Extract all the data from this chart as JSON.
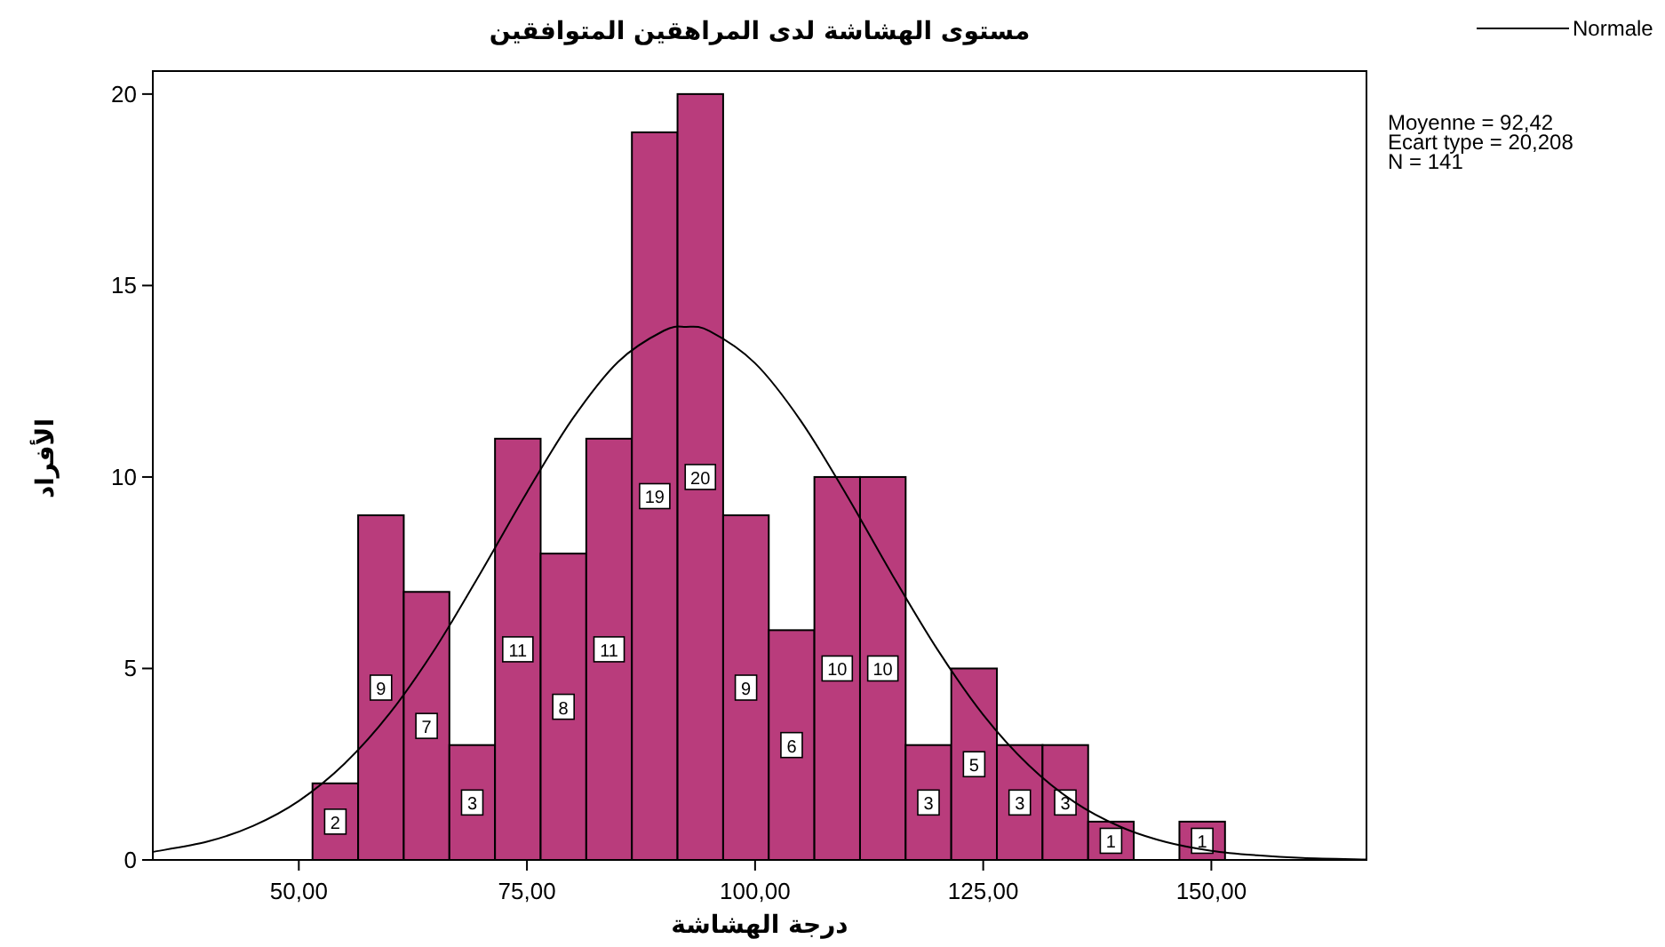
{
  "chart_data": {
    "type": "histogram",
    "title": "مستوى الهشاشة لدى المراهقين المتوافقين",
    "xlabel": "درجة الهشاشة",
    "ylabel": "الأفراد",
    "bins": [
      51.5,
      56.5,
      61.5,
      66.5,
      71.5,
      76.5,
      81.5,
      86.5,
      91.5,
      96.5,
      101.5,
      106.5,
      111.5,
      116.5,
      121.5,
      126.5,
      131.5,
      136.5,
      141.5,
      146.5,
      151.5
    ],
    "series": [
      {
        "type": "histogram",
        "color": "#b93c7c",
        "values": [
          2,
          9,
          7,
          3,
          11,
          8,
          11,
          19,
          20,
          9,
          6,
          10,
          10,
          3,
          5,
          3,
          3,
          1,
          0,
          1
        ],
        "value_labels": [
          "2",
          "9",
          "7",
          "3",
          "11",
          "8",
          "11",
          "19",
          "20",
          "9",
          "6",
          "10",
          "10",
          "3",
          "5",
          "3",
          "3",
          "1",
          null,
          "1"
        ]
      },
      {
        "type": "line",
        "name": "Normale",
        "color": "#000000",
        "x": [
          34,
          40,
          45,
          50,
          55,
          60,
          65,
          70,
          75,
          80,
          85,
          90,
          92.42,
          95,
          100,
          105,
          110,
          115,
          120,
          125,
          130,
          135,
          140,
          145,
          150,
          155,
          160,
          167
        ],
        "values": [
          0.21,
          0.48,
          0.89,
          1.54,
          2.51,
          3.84,
          5.54,
          7.53,
          9.6,
          11.52,
          13.01,
          13.82,
          13.92,
          13.81,
          12.97,
          11.47,
          9.54,
          7.46,
          5.49,
          3.79,
          2.47,
          1.51,
          0.87,
          0.47,
          0.24,
          0.12,
          0.05,
          0.01
        ]
      }
    ],
    "xlim": [
      34,
      167
    ],
    "ylim": [
      0,
      20.6
    ],
    "xticks": [
      {
        "value": 50,
        "label": "50,00"
      },
      {
        "value": 75,
        "label": "75,00"
      },
      {
        "value": 100,
        "label": "100,00"
      },
      {
        "value": 125,
        "label": "125,00"
      },
      {
        "value": 150,
        "label": "150,00"
      }
    ],
    "yticks": [
      0,
      5,
      10,
      15,
      20
    ],
    "legend": "top right",
    "annotations": [
      "Moyenne = 92,42",
      "Ecart type = 20,208",
      "N = 141"
    ]
  }
}
